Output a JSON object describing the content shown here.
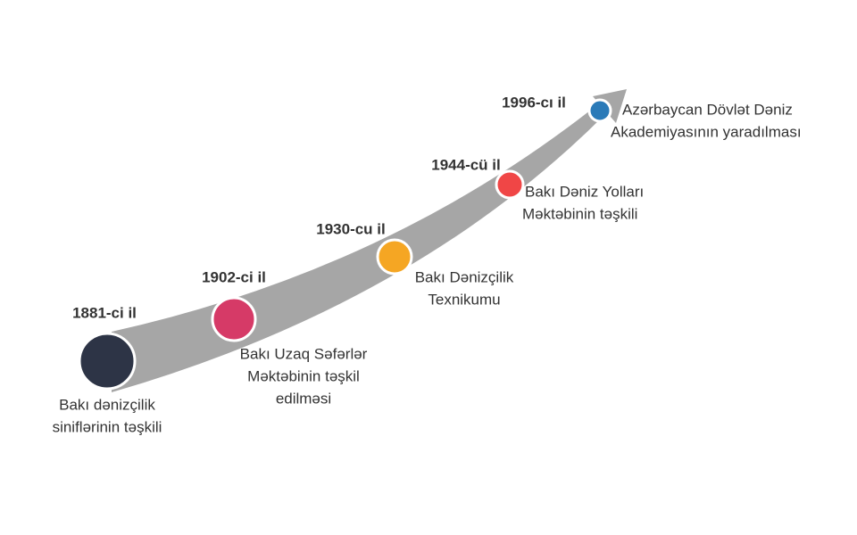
{
  "events": [
    {
      "year": "1881-ci il",
      "lines": [
        "Bakı dənizçilik",
        "siniflərinin təşkili"
      ]
    },
    {
      "year": "1902-ci il",
      "lines": [
        "Bakı Uzaq Səfərlər",
        "Məktəbinin təşkil",
        "edilməsi"
      ]
    },
    {
      "year": "1930-cu il",
      "lines": [
        "Bakı Dənizçilik",
        "Texnikumu"
      ]
    },
    {
      "year": "1944-cü il",
      "lines": [
        "Bakı Dəniz Yolları",
        "Məktəbinin təşkili"
      ]
    },
    {
      "year": "1996-cı il",
      "lines": [
        "Azərbaycan Dövlət Dəniz",
        "Akademiyasının yaradılması"
      ]
    }
  ]
}
